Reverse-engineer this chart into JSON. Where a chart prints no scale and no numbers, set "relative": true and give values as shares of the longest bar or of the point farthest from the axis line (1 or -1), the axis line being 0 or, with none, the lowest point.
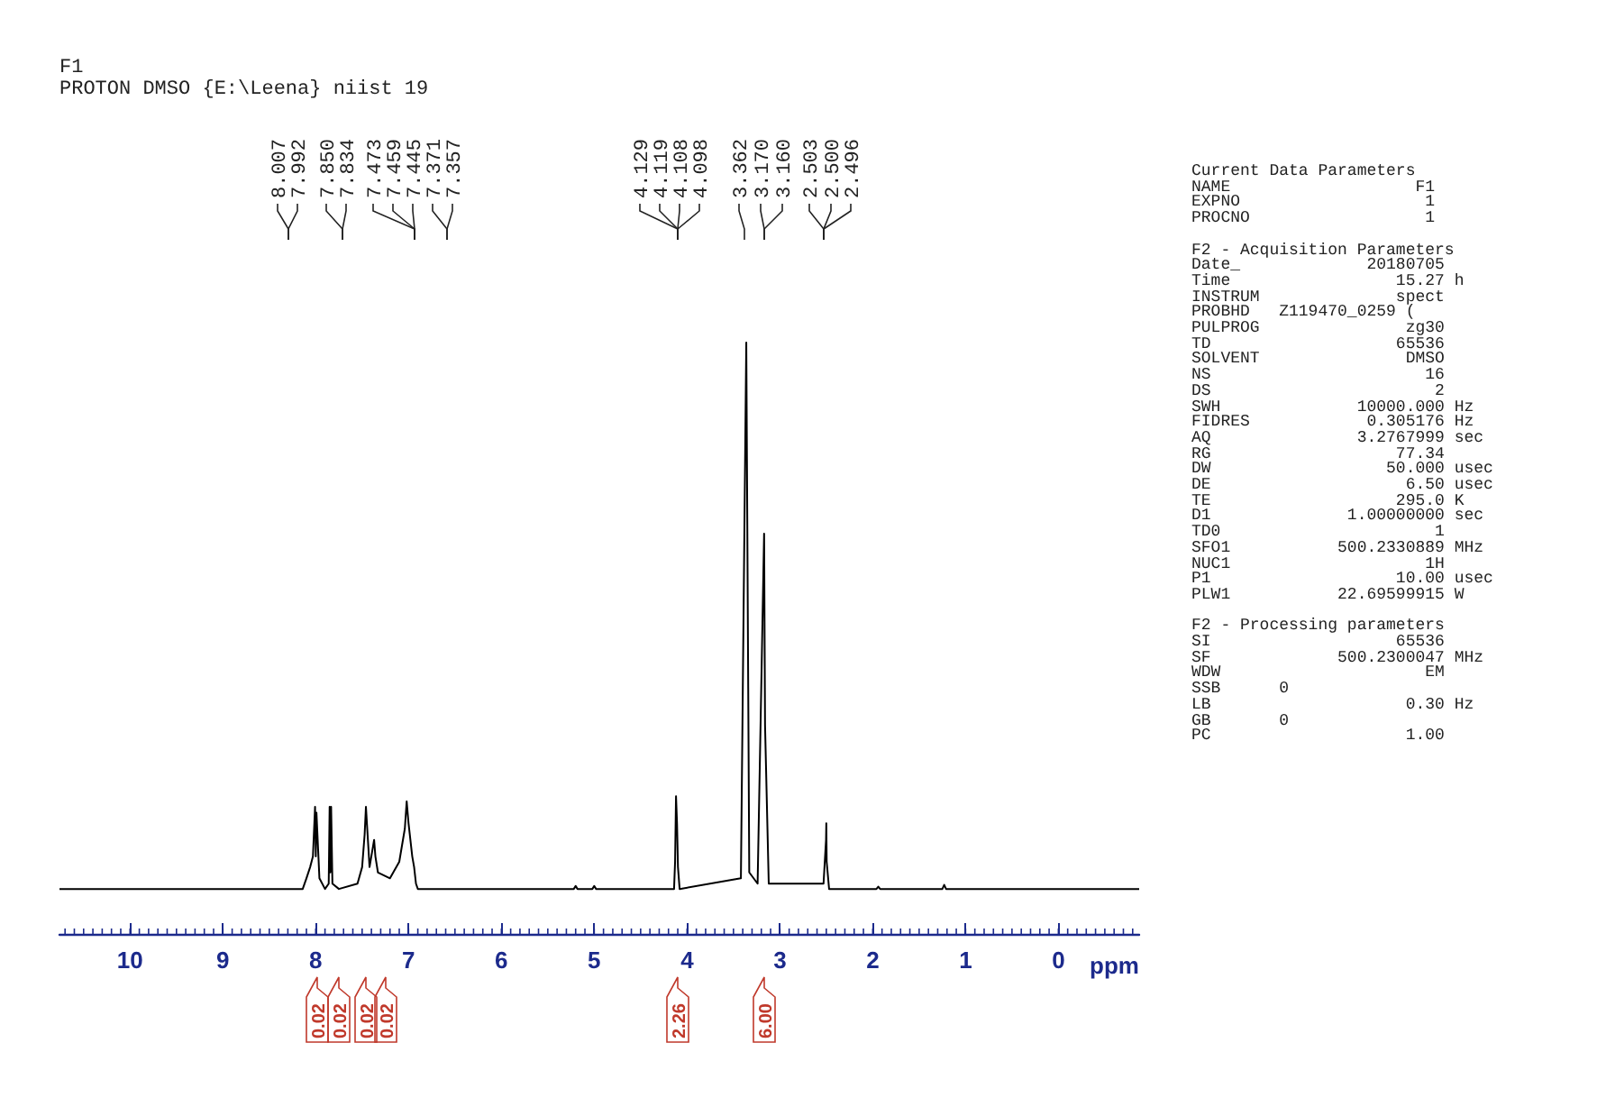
{
  "chart_data": {
    "type": "line",
    "title": "F1",
    "subtitle": "PROTON DMSO {E:\\Leena} niist 19",
    "xlabel": "ppm",
    "relative": true,
    "xlim": [
      10.76,
      -0.87
    ],
    "xticks": [
      10,
      9,
      8,
      7,
      6,
      5,
      4,
      3,
      2,
      1,
      0
    ],
    "grid": false,
    "marker": "none",
    "line_style": "solid",
    "series": [
      {
        "color": "#000000",
        "x": [
          10.76,
          8.14,
          8.1,
          8.06,
          8.03,
          8.007,
          7.999,
          7.992,
          7.96,
          7.9,
          7.86,
          7.85,
          7.842,
          7.834,
          7.82,
          7.75,
          7.55,
          7.5,
          7.473,
          7.459,
          7.445,
          7.42,
          7.371,
          7.357,
          7.33,
          7.2,
          7.1,
          7.04,
          7.02,
          7.0,
          6.96,
          6.94,
          6.92,
          6.9,
          5.22,
          5.2,
          5.18,
          5.02,
          5.0,
          4.98,
          4.14,
          4.129,
          4.119,
          4.108,
          4.098,
          4.08,
          3.42,
          3.362,
          3.33,
          3.24,
          3.17,
          3.16,
          3.12,
          2.53,
          2.503,
          2.5,
          2.496,
          2.47,
          1.96,
          1.94,
          1.92,
          1.25,
          1.23,
          1.21,
          -0.87
        ],
        "values": [
          0.076,
          0.076,
          0.094,
          0.113,
          0.131,
          0.215,
          0.131,
          0.205,
          0.094,
          0.076,
          0.085,
          0.215,
          0.104,
          0.215,
          0.085,
          0.076,
          0.085,
          0.113,
          0.168,
          0.215,
          0.178,
          0.113,
          0.159,
          0.131,
          0.104,
          0.094,
          0.122,
          0.178,
          0.224,
          0.187,
          0.131,
          0.113,
          0.085,
          0.076,
          0.076,
          0.081,
          0.076,
          0.076,
          0.081,
          0.076,
          0.076,
          0.122,
          0.233,
          0.187,
          0.113,
          0.076,
          0.094,
          1.0,
          0.104,
          0.085,
          0.677,
          0.353,
          0.085,
          0.085,
          0.159,
          0.187,
          0.122,
          0.076,
          0.076,
          0.08,
          0.076,
          0.076,
          0.083,
          0.076,
          0.076
        ]
      }
    ],
    "annotations": [
      "8.007",
      "7.992",
      "7.850",
      "7.834",
      "7.473",
      "7.459",
      "7.445",
      "7.371",
      "7.357",
      "4.129",
      "4.119",
      "4.108",
      "4.098",
      "3.362",
      "3.170",
      "3.160",
      "2.503",
      "2.500",
      "2.496",
      "0.02",
      "0.02",
      "0.02",
      "0.02",
      "2.26",
      "6.00",
      "Current Data Parameters\nNAME                   F1\nEXPNO                   1\nPROCNO                  1",
      "F2 - Acquisition Parameters\nDate_             20180705\nTime                 15.27 h\nINSTRUM              spect\nPROBHD   Z119470_0259 (\nPULPROG               zg30\nTD                   65536\nSOLVENT               DMSO\nNS                      16\nDS                       2\nSWH              10000.000 Hz\nFIDRES            0.305176 Hz\nAQ               3.2767999 sec\nRG                   77.34\nDW                  50.000 usec\nDE                    6.50 usec\nTE                   295.0 K\nD1              1.00000000 sec\nTD0                      1\nSFO1           500.2330889 MHz\nNUC1                    1H\nP1                   10.00 usec\nPLW1           22.69599915 W",
      "F2 - Processing parameters\nSI                   65536\nSF             500.2300047 MHz\nWDW                     EM\nSSB      0\nLB                    0.30 Hz\nGB       0\nPC                    1.00"
    ]
  }
}
